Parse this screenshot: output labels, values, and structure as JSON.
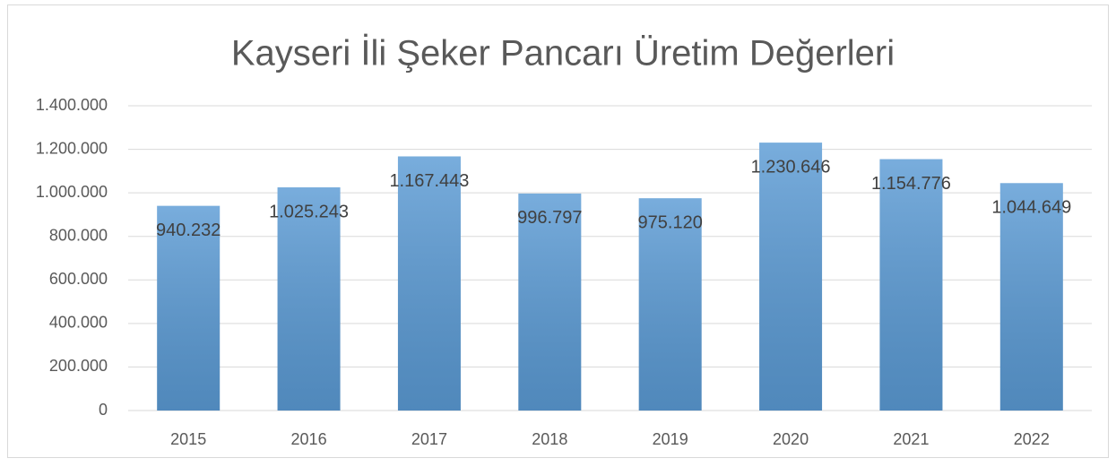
{
  "chart_data": {
    "type": "bar",
    "title": "Kayseri İli Şeker Pancarı Üretim Değerleri",
    "categories": [
      "2015",
      "2016",
      "2017",
      "2018",
      "2019",
      "2020",
      "2021",
      "2022"
    ],
    "values": [
      940232,
      1025243,
      1167443,
      996797,
      975120,
      1230646,
      1154776,
      1044649
    ],
    "value_labels": [
      "940.232",
      "1.025.243",
      "1.167.443",
      "996.797",
      "975.120",
      "1.230.646",
      "1.154.776",
      "1.044.649"
    ],
    "color": "#5b9bd5",
    "ylim": [
      0,
      1400000
    ],
    "yticks": [
      0,
      {
        "value": 200000,
        "label": "200.000"
      },
      {
        "value": 400000,
        "label": "400.000"
      },
      {
        "value": 600000,
        "label": "600.000"
      },
      {
        "value": 800000,
        "label": "800.000"
      },
      {
        "value": 1000000,
        "label": "1.000.000"
      },
      {
        "value": 1200000,
        "label": "1.200.000"
      },
      {
        "value": 1400000,
        "label": "1.400.000"
      }
    ],
    "grid": true
  }
}
